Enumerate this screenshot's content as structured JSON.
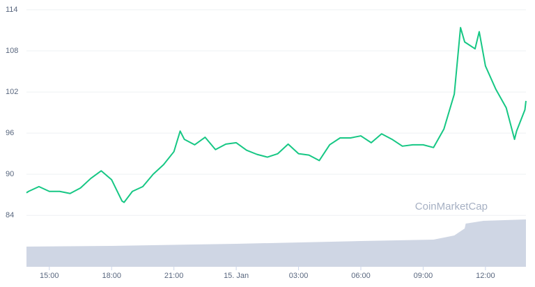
{
  "chart_data": {
    "type": "line",
    "watermark": "CoinMarketCap",
    "x": [
      13.9,
      14,
      14.5,
      15,
      15.5,
      16,
      16.5,
      17,
      17.5,
      18,
      18.5,
      18.6,
      19,
      19.5,
      20,
      20.5,
      21,
      21.3,
      21.5,
      22,
      22.5,
      23,
      23.5,
      24,
      24.5,
      25,
      25.5,
      26,
      26.5,
      27,
      27.5,
      28,
      28.5,
      29,
      29.5,
      30,
      30.5,
      31,
      31.5,
      32,
      32.5,
      33,
      33.5,
      34,
      34.5,
      34.8,
      35,
      35.5,
      35.7,
      36,
      36.5,
      37,
      37.4,
      37.5,
      37.9,
      37.95
    ],
    "series": [
      {
        "color": "#16c784",
        "values": [
          87.3,
          87.5,
          88.2,
          87.5,
          87.5,
          87.2,
          88.0,
          89.4,
          90.5,
          89.2,
          86.1,
          85.9,
          87.5,
          88.2,
          90.0,
          91.4,
          93.3,
          96.3,
          95.1,
          94.3,
          95.4,
          93.6,
          94.4,
          94.6,
          93.5,
          92.9,
          92.5,
          93.0,
          94.4,
          93.0,
          92.8,
          92.0,
          94.3,
          95.3,
          95.3,
          95.6,
          94.6,
          95.9,
          95.1,
          94.1,
          94.3,
          94.3,
          93.9,
          96.6,
          101.7,
          111.4,
          109.3,
          108.3,
          110.8,
          105.8,
          102.4,
          99.7,
          95.1,
          96.3,
          99.4,
          100.7
        ]
      }
    ],
    "volume": {
      "color": "#cfd6e4",
      "x": [
        13.9,
        18,
        24,
        30,
        33.5,
        34.5,
        35,
        35.05,
        35.9,
        37.95
      ],
      "values": [
        29,
        30,
        33,
        37,
        39,
        45,
        55,
        62,
        66,
        68
      ]
    },
    "xlim": [
      13.9,
      37.95
    ],
    "xticks": [
      {
        "value": 15,
        "label": "15:00"
      },
      {
        "value": 18,
        "label": "18:00"
      },
      {
        "value": 21,
        "label": "21:00"
      },
      {
        "value": 24,
        "label": "15. Jan"
      },
      {
        "value": 27,
        "label": "03:00"
      },
      {
        "value": 30,
        "label": "06:00"
      },
      {
        "value": 33,
        "label": "09:00"
      },
      {
        "value": 36,
        "label": "12:00"
      }
    ],
    "ylim": [
      76.5,
      114
    ],
    "yticks": [
      84,
      90,
      96,
      102,
      108,
      114
    ],
    "grid": true
  }
}
